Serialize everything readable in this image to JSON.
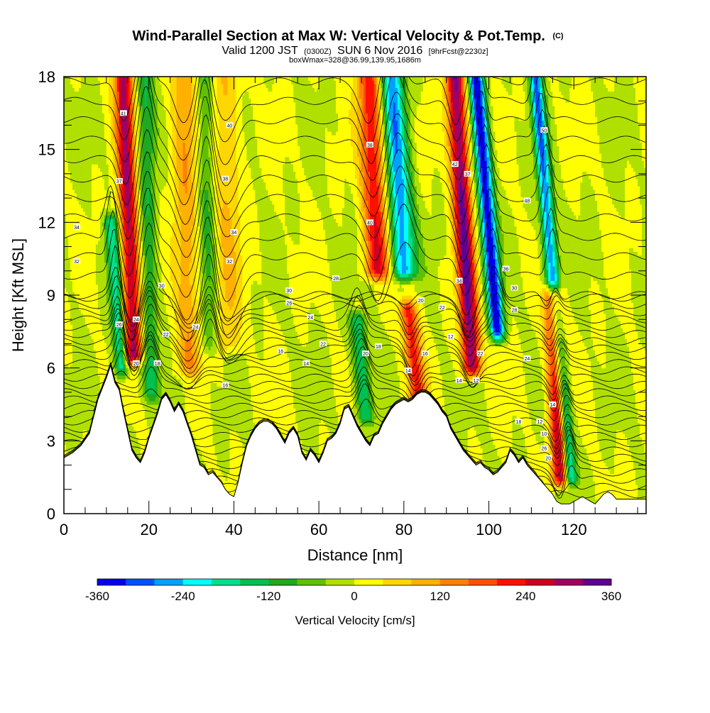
{
  "header": {
    "title_main": "Wind-Parallel Section at Max W: Vertical Velocity & Pot.Temp.",
    "title_suffix": "(C)",
    "valid_a": "Valid 1200 JST",
    "valid_b": "(0300Z)",
    "valid_c": "SUN 6 Nov 2016",
    "valid_d": "[9hrFcst@2230z]",
    "box_info": "boxWmax=328@36.99,139.95,1686m"
  },
  "chart_data": {
    "type": "heatmap",
    "xlabel": "Distance [nm]",
    "ylabel": "Height [Kft MSL]",
    "xlim": [
      0,
      137
    ],
    "ylim": [
      0,
      18
    ],
    "x_ticks": [
      0,
      20,
      40,
      60,
      80,
      100,
      120
    ],
    "y_ticks": [
      0,
      3,
      6,
      9,
      12,
      15,
      18
    ],
    "colorbar": {
      "label": "Vertical Velocity [cm/s]",
      "ticks": [
        -360,
        -240,
        -120,
        0,
        120,
        240,
        360
      ],
      "min": -360,
      "max": 360,
      "colors": [
        "#0000ee",
        "#0050ff",
        "#00a0ff",
        "#00ffff",
        "#00e08c",
        "#00c050",
        "#20a820",
        "#60c000",
        "#b0e000",
        "#ffff00",
        "#ffd700",
        "#ffb000",
        "#ff8000",
        "#ff5000",
        "#ff1000",
        "#d00020",
        "#a00060",
        "#600090"
      ]
    },
    "terrain_kft": [
      [
        0,
        2.3
      ],
      [
        2,
        2.5
      ],
      [
        4,
        2.8
      ],
      [
        6,
        3.3
      ],
      [
        8,
        4.7
      ],
      [
        10,
        5.6
      ],
      [
        11,
        6.1
      ],
      [
        12,
        5.4
      ],
      [
        13,
        5.1
      ],
      [
        14,
        4.2
      ],
      [
        15,
        3.4
      ],
      [
        16,
        2.6
      ],
      [
        17,
        2.3
      ],
      [
        18,
        2.1
      ],
      [
        19,
        2.5
      ],
      [
        20,
        3.1
      ],
      [
        21,
        3.6
      ],
      [
        22,
        4.1
      ],
      [
        23,
        4.7
      ],
      [
        24,
        4.9
      ],
      [
        25,
        4.6
      ],
      [
        26,
        4.2
      ],
      [
        27,
        4.5
      ],
      [
        28,
        4.2
      ],
      [
        29,
        3.7
      ],
      [
        30,
        3.2
      ],
      [
        31,
        2.6
      ],
      [
        32,
        2.0
      ],
      [
        33,
        1.9
      ],
      [
        34,
        1.6
      ],
      [
        35,
        1.7
      ],
      [
        36,
        1.5
      ],
      [
        37,
        1.3
      ],
      [
        38,
        1.0
      ],
      [
        39,
        0.8
      ],
      [
        40,
        0.7
      ],
      [
        41,
        1.3
      ],
      [
        42,
        2.1
      ],
      [
        43,
        2.8
      ],
      [
        44,
        3.2
      ],
      [
        45,
        3.5
      ],
      [
        46,
        3.7
      ],
      [
        47,
        3.8
      ],
      [
        48,
        3.8
      ],
      [
        49,
        3.7
      ],
      [
        50,
        3.5
      ],
      [
        51,
        3.2
      ],
      [
        52,
        2.9
      ],
      [
        53,
        3.3
      ],
      [
        54,
        3.5
      ],
      [
        55,
        3.2
      ],
      [
        56,
        2.5
      ],
      [
        57,
        2.2
      ],
      [
        58,
        2.6
      ],
      [
        59,
        2.4
      ],
      [
        60,
        2.1
      ],
      [
        61,
        2.5
      ],
      [
        62,
        3.0
      ],
      [
        63,
        3.1
      ],
      [
        64,
        3.3
      ],
      [
        65,
        3.7
      ],
      [
        66,
        4.3
      ],
      [
        67,
        4.4
      ],
      [
        68,
        4.0
      ],
      [
        69,
        3.6
      ],
      [
        70,
        3.3
      ],
      [
        71,
        3.0
      ],
      [
        72,
        2.8
      ],
      [
        73,
        3.2
      ],
      [
        74,
        3.3
      ],
      [
        75,
        3.7
      ],
      [
        76,
        4.0
      ],
      [
        77,
        4.3
      ],
      [
        78,
        4.5
      ],
      [
        79,
        4.6
      ],
      [
        80,
        4.7
      ],
      [
        81,
        4.6
      ],
      [
        82,
        4.7
      ],
      [
        83,
        4.9
      ],
      [
        84,
        5.0
      ],
      [
        85,
        5.0
      ],
      [
        86,
        4.9
      ],
      [
        87,
        4.7
      ],
      [
        88,
        4.5
      ],
      [
        89,
        4.2
      ],
      [
        90,
        4.0
      ],
      [
        91,
        3.5
      ],
      [
        92,
        3.2
      ],
      [
        93,
        2.9
      ],
      [
        94,
        2.6
      ],
      [
        95,
        2.4
      ],
      [
        96,
        2.2
      ],
      [
        97,
        2.0
      ],
      [
        98,
        2.1
      ],
      [
        99,
        1.9
      ],
      [
        100,
        1.8
      ],
      [
        101,
        1.6
      ],
      [
        102,
        1.7
      ],
      [
        103,
        1.9
      ],
      [
        104,
        2.1
      ],
      [
        105,
        2.6
      ],
      [
        106,
        2.4
      ],
      [
        107,
        2.1
      ],
      [
        108,
        2.3
      ],
      [
        109,
        2.0
      ],
      [
        110,
        1.8
      ],
      [
        111,
        1.6
      ],
      [
        112,
        1.4
      ],
      [
        113,
        1.2
      ],
      [
        114,
        1.0
      ],
      [
        115,
        0.8
      ],
      [
        116,
        0.5
      ],
      [
        117,
        0.4
      ],
      [
        118,
        0.4
      ],
      [
        119,
        0.4
      ],
      [
        120,
        0.5
      ],
      [
        121,
        0.6
      ],
      [
        122,
        0.7
      ],
      [
        123,
        0.6
      ],
      [
        124,
        0.5
      ],
      [
        125,
        0.4
      ],
      [
        126,
        0.6
      ],
      [
        127,
        0.8
      ],
      [
        128,
        0.9
      ],
      [
        129,
        0.8
      ],
      [
        130,
        0.6
      ],
      [
        131,
        0.6
      ],
      [
        132,
        0.6
      ],
      [
        133,
        0.6
      ],
      [
        134,
        0.6
      ],
      [
        135,
        0.6
      ],
      [
        136,
        0.6
      ],
      [
        137,
        0.6
      ]
    ],
    "updraft_bands": [
      {
        "x": 14,
        "z_top": 18,
        "z_bot": 6.5,
        "slant": 2.5,
        "width": 2.2,
        "w_max": 290
      },
      {
        "x": 28,
        "z_top": 18,
        "z_bot": 6.0,
        "slant": 1.5,
        "width": 3.0,
        "w_max": 110
      },
      {
        "x": 38,
        "z_top": 18,
        "z_bot": 7.0,
        "slant": 0.5,
        "width": 3.5,
        "w_max": 80
      },
      {
        "x": 72,
        "z_top": 18,
        "z_bot": 10.0,
        "slant": 2.0,
        "width": 3.0,
        "w_max": 240
      },
      {
        "x": 92,
        "z_top": 18,
        "z_bot": 6.0,
        "slant": 4.0,
        "width": 2.2,
        "w_max": 330
      },
      {
        "x": 81,
        "z_top": 8.5,
        "z_bot": 4.6,
        "slant": 2.5,
        "width": 2.0,
        "w_max": 220
      },
      {
        "x": 115,
        "z_top": 9.0,
        "z_bot": 1.5,
        "slant": 2.0,
        "width": 2.0,
        "w_max": 328
      }
    ],
    "downdraft_bands": [
      {
        "x": 11,
        "z_top": 12,
        "z_bot": 6.0,
        "slant": 2.5,
        "width": 1.5,
        "w_min": -200
      },
      {
        "x": 19,
        "z_top": 18,
        "z_bot": 5.0,
        "slant": 1.5,
        "width": 2.0,
        "w_min": -120
      },
      {
        "x": 33,
        "z_top": 18,
        "z_bot": 7.0,
        "slant": 1.5,
        "width": 2.0,
        "w_min": -100
      },
      {
        "x": 77,
        "z_top": 18,
        "z_bot": 10.0,
        "slant": 3.0,
        "width": 3.0,
        "w_min": -270
      },
      {
        "x": 97,
        "z_top": 18,
        "z_bot": 7.5,
        "slant": 5.0,
        "width": 1.8,
        "w_min": -360
      },
      {
        "x": 111,
        "z_top": 18,
        "z_bot": 1.5,
        "slant": 8.0,
        "width": 1.6,
        "w_min": -280
      },
      {
        "x": 69,
        "z_top": 8.0,
        "z_bot": 4.0,
        "slant": 2.0,
        "width": 2.0,
        "w_min": -150
      }
    ],
    "theta_contour_labels": [
      {
        "x": 14,
        "z": 16.5,
        "text": "41"
      },
      {
        "x": 13,
        "z": 13.7,
        "text": "37"
      },
      {
        "x": 39,
        "z": 16.0,
        "text": "40"
      },
      {
        "x": 38,
        "z": 13.8,
        "text": "38"
      },
      {
        "x": 3,
        "z": 11.8,
        "text": "34"
      },
      {
        "x": 3,
        "z": 10.4,
        "text": "32"
      },
      {
        "x": 40,
        "z": 11.6,
        "text": "34"
      },
      {
        "x": 39,
        "z": 10.4,
        "text": "32"
      },
      {
        "x": 23,
        "z": 9.4,
        "text": "30"
      },
      {
        "x": 53,
        "z": 9.2,
        "text": "30"
      },
      {
        "x": 53,
        "z": 8.7,
        "text": "28"
      },
      {
        "x": 64,
        "z": 9.7,
        "text": "28"
      },
      {
        "x": 13,
        "z": 7.8,
        "text": "26"
      },
      {
        "x": 17,
        "z": 8.0,
        "text": "24"
      },
      {
        "x": 24,
        "z": 7.4,
        "text": "22"
      },
      {
        "x": 31,
        "z": 7.7,
        "text": "24"
      },
      {
        "x": 58,
        "z": 8.1,
        "text": "24"
      },
      {
        "x": 17,
        "z": 6.2,
        "text": "20"
      },
      {
        "x": 22,
        "z": 6.2,
        "text": "18"
      },
      {
        "x": 51,
        "z": 6.7,
        "text": "16"
      },
      {
        "x": 57,
        "z": 6.2,
        "text": "14"
      },
      {
        "x": 61,
        "z": 7.0,
        "text": "22"
      },
      {
        "x": 71,
        "z": 6.6,
        "text": "20"
      },
      {
        "x": 74,
        "z": 6.9,
        "text": "18"
      },
      {
        "x": 81,
        "z": 5.9,
        "text": "14"
      },
      {
        "x": 85,
        "z": 6.6,
        "text": "16"
      },
      {
        "x": 84,
        "z": 8.8,
        "text": "20"
      },
      {
        "x": 89,
        "z": 8.5,
        "text": "22"
      },
      {
        "x": 38,
        "z": 5.3,
        "text": "16"
      },
      {
        "x": 91,
        "z": 7.3,
        "text": "12"
      },
      {
        "x": 93,
        "z": 5.5,
        "text": "14"
      },
      {
        "x": 98,
        "z": 6.6,
        "text": "22"
      },
      {
        "x": 97,
        "z": 5.5,
        "text": "12"
      },
      {
        "x": 92,
        "z": 14.4,
        "text": "42"
      },
      {
        "x": 95,
        "z": 14.0,
        "text": "37"
      },
      {
        "x": 72,
        "z": 15.2,
        "text": "38"
      },
      {
        "x": 72,
        "z": 12.0,
        "text": "40"
      },
      {
        "x": 93,
        "z": 9.6,
        "text": "34"
      },
      {
        "x": 104,
        "z": 10.1,
        "text": "36"
      },
      {
        "x": 106,
        "z": 9.3,
        "text": "30"
      },
      {
        "x": 106,
        "z": 8.4,
        "text": "28"
      },
      {
        "x": 109,
        "z": 6.4,
        "text": "24"
      },
      {
        "x": 107,
        "z": 3.8,
        "text": "18"
      },
      {
        "x": 112,
        "z": 3.8,
        "text": "12"
      },
      {
        "x": 115,
        "z": 4.5,
        "text": "14"
      },
      {
        "x": 113,
        "z": 3.3,
        "text": "10"
      },
      {
        "x": 113,
        "z": 2.7,
        "text": "26"
      },
      {
        "x": 114,
        "z": 2.3,
        "text": "20"
      },
      {
        "x": 109,
        "z": 12.9,
        "text": "48"
      },
      {
        "x": 113,
        "z": 15.8,
        "text": "50"
      }
    ]
  }
}
